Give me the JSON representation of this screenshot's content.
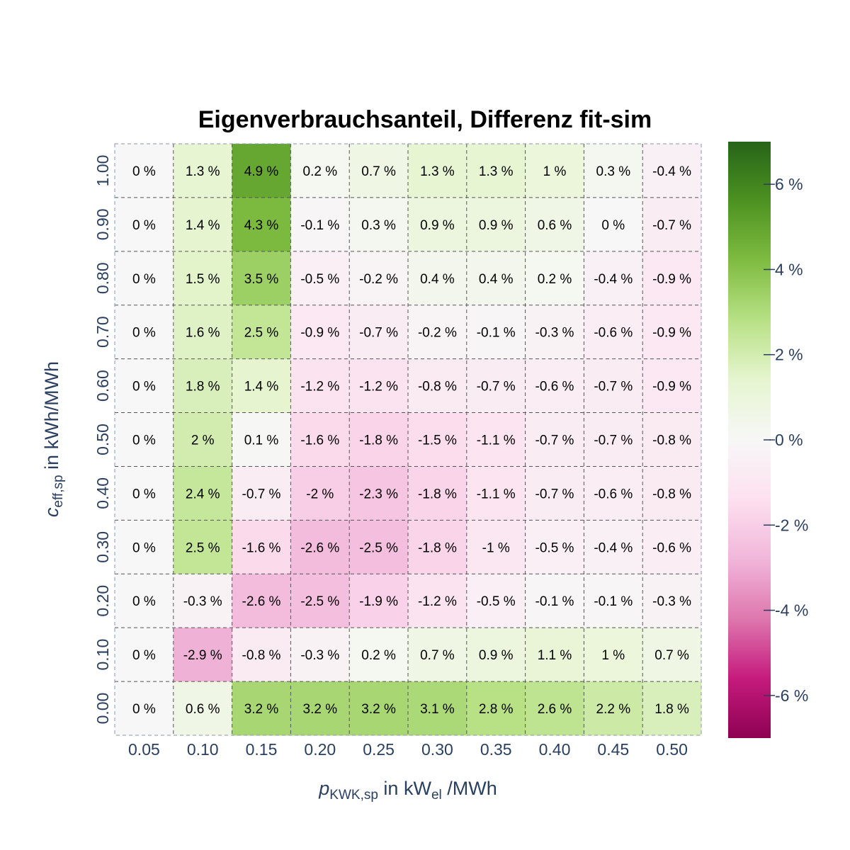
{
  "chart_data": {
    "type": "heatmap",
    "title": "Eigenverbrauchsanteil, Differenz fit-sim",
    "xlabel": {
      "var": "p",
      "sub": "KWK,sp",
      "mid": " in kW",
      "unit_sub": "el",
      "tail": " /MWh"
    },
    "ylabel": {
      "var": "c",
      "sub": "eff,sp",
      "tail": " in kWh/MWh"
    },
    "x": [
      "0.05",
      "0.10",
      "0.15",
      "0.20",
      "0.25",
      "0.30",
      "0.35",
      "0.40",
      "0.45",
      "0.50"
    ],
    "y": [
      "1.00",
      "0.90",
      "0.80",
      "0.70",
      "0.60",
      "0.50",
      "0.40",
      "0.30",
      "0.20",
      "0.10",
      "0.00"
    ],
    "unit": "%",
    "values": [
      [
        0,
        1.3,
        4.9,
        0.2,
        0.7,
        1.3,
        1.3,
        1,
        0.3,
        -0.4
      ],
      [
        0,
        1.4,
        4.3,
        -0.1,
        0.3,
        0.9,
        0.9,
        0.6,
        0,
        -0.7
      ],
      [
        0,
        1.5,
        3.5,
        -0.5,
        -0.2,
        0.4,
        0.4,
        0.2,
        -0.4,
        -0.9
      ],
      [
        0,
        1.6,
        2.5,
        -0.9,
        -0.7,
        -0.2,
        -0.1,
        -0.3,
        -0.6,
        -0.9
      ],
      [
        0,
        1.8,
        1.4,
        -1.2,
        -1.2,
        -0.8,
        -0.7,
        -0.6,
        -0.7,
        -0.9
      ],
      [
        0,
        2,
        0.1,
        -1.6,
        -1.8,
        -1.5,
        -1.1,
        -0.7,
        -0.7,
        -0.8
      ],
      [
        0,
        2.4,
        -0.7,
        -2,
        -2.3,
        -1.8,
        -1.1,
        -0.7,
        -0.6,
        -0.8
      ],
      [
        0,
        2.5,
        -1.6,
        -2.6,
        -2.5,
        -1.8,
        -1,
        -0.5,
        -0.4,
        -0.6
      ],
      [
        0,
        -0.3,
        -2.6,
        -2.5,
        -1.9,
        -1.2,
        -0.5,
        -0.1,
        -0.1,
        -0.3
      ],
      [
        0,
        -2.9,
        -0.8,
        -0.3,
        0.2,
        0.7,
        0.9,
        1.1,
        1,
        0.7
      ],
      [
        0,
        0.6,
        3.2,
        3.2,
        3.2,
        3.1,
        2.8,
        2.6,
        2.2,
        1.8
      ]
    ],
    "labels": [
      [
        "0 %",
        "1.3 %",
        "4.9 %",
        "0.2 %",
        "0.7 %",
        "1.3 %",
        "1.3 %",
        "1 %",
        "0.3 %",
        "-0.4 %"
      ],
      [
        "0 %",
        "1.4 %",
        "4.3 %",
        "-0.1 %",
        "0.3 %",
        "0.9 %",
        "0.9 %",
        "0.6 %",
        "0 %",
        "-0.7 %"
      ],
      [
        "0 %",
        "1.5 %",
        "3.5 %",
        "-0.5 %",
        "-0.2 %",
        "0.4 %",
        "0.4 %",
        "0.2 %",
        "-0.4 %",
        "-0.9 %"
      ],
      [
        "0 %",
        "1.6 %",
        "2.5 %",
        "-0.9 %",
        "-0.7 %",
        "-0.2 %",
        "-0.1 %",
        "-0.3 %",
        "-0.6 %",
        "-0.9 %"
      ],
      [
        "0 %",
        "1.8 %",
        "1.4 %",
        "-1.2 %",
        "-1.2 %",
        "-0.8 %",
        "-0.7 %",
        "-0.6 %",
        "-0.7 %",
        "-0.9 %"
      ],
      [
        "0 %",
        "2 %",
        "0.1 %",
        "-1.6 %",
        "-1.8 %",
        "-1.5 %",
        "-1.1 %",
        "-0.7 %",
        "-0.7 %",
        "-0.8 %"
      ],
      [
        "0 %",
        "2.4 %",
        "-0.7 %",
        "-2 %",
        "-2.3 %",
        "-1.8 %",
        "-1.1 %",
        "-0.7 %",
        "-0.6 %",
        "-0.8 %"
      ],
      [
        "0 %",
        "2.5 %",
        "-1.6 %",
        "-2.6 %",
        "-2.5 %",
        "-1.8 %",
        "-1 %",
        "-0.5 %",
        "-0.4 %",
        "-0.6 %"
      ],
      [
        "0 %",
        "-0.3 %",
        "-2.6 %",
        "-2.5 %",
        "-1.9 %",
        "-1.2 %",
        "-0.5 %",
        "-0.1 %",
        "-0.1 %",
        "-0.3 %"
      ],
      [
        "0 %",
        "-2.9 %",
        "-0.8 %",
        "-0.3 %",
        "0.2 %",
        "0.7 %",
        "0.9 %",
        "1.1 %",
        "1 %",
        "0.7 %"
      ],
      [
        "0 %",
        "0.6 %",
        "3.2 %",
        "3.2 %",
        "3.2 %",
        "3.1 %",
        "2.8 %",
        "2.6 %",
        "2.2 %",
        "1.8 %"
      ]
    ],
    "colorscale": [
      "#8e0152",
      "#c51b7d",
      "#de77ae",
      "#f1b6da",
      "#fde0ef",
      "#f7f7f7",
      "#e6f5d0",
      "#b8e186",
      "#7fbc41",
      "#4d9221",
      "#276419"
    ],
    "zrange": [
      -7,
      7
    ],
    "colorbar_ticks": [
      6,
      4,
      2,
      0,
      -2,
      -4,
      -6
    ],
    "colorbar_labels": [
      "6 %",
      "4 %",
      "2 %",
      "0 %",
      "-2 %",
      "-4 %",
      "-6 %"
    ],
    "grid": true,
    "colorbar": true
  }
}
